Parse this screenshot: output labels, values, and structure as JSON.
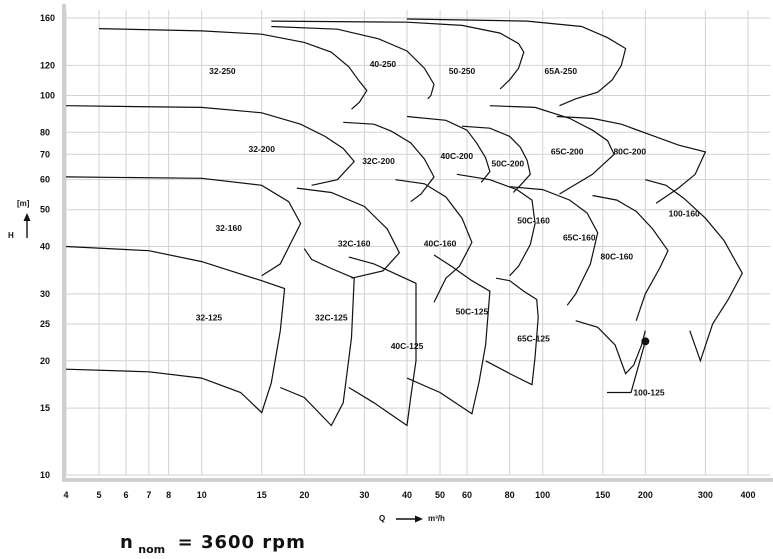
{
  "chart_data": {
    "type": "line",
    "title": "",
    "speed_label": {
      "main": "n",
      "subscript": "nom",
      "rest": "= 3600 rpm"
    },
    "xlabel": "Q",
    "xunit": "m³/h",
    "ylabel": "H",
    "yunit": "[m]",
    "xscale": "log",
    "yscale": "log",
    "xlim": [
      4,
      400
    ],
    "ylim": [
      10,
      160
    ],
    "grid": true,
    "x_ticks": [
      4,
      5,
      6,
      7,
      8,
      10,
      15,
      20,
      30,
      40,
      50,
      60,
      80,
      100,
      150,
      200,
      300,
      400
    ],
    "y_ticks": [
      10,
      15,
      20,
      25,
      30,
      40,
      50,
      60,
      70,
      80,
      100,
      120,
      160
    ],
    "series": [
      {
        "name": "32-125",
        "label_at": [
          10.5,
          25.5
        ],
        "values": [
          [
            4,
            19
          ],
          [
            7,
            18.7
          ],
          [
            10,
            18.0
          ],
          [
            13,
            16.5
          ],
          [
            15,
            14.6
          ],
          [
            16,
            17.5
          ],
          [
            17,
            24
          ],
          [
            17.5,
            31
          ],
          [
            15,
            32.5
          ],
          [
            10,
            36.5
          ],
          [
            7,
            39
          ],
          [
            4,
            40
          ]
        ]
      },
      {
        "name": "32C-125",
        "label_at": [
          24,
          25.5
        ],
        "values": [
          [
            17,
            17
          ],
          [
            20,
            16
          ],
          [
            24,
            13.5
          ],
          [
            26,
            15.5
          ],
          [
            27.5,
            23
          ],
          [
            28,
            33
          ],
          [
            24,
            35
          ],
          [
            21,
            37
          ],
          [
            20,
            39.5
          ]
        ]
      },
      {
        "name": "40C-125",
        "label_at": [
          40,
          21.5
        ],
        "values": [
          [
            27,
            17
          ],
          [
            32,
            15.5
          ],
          [
            40,
            13.5
          ],
          [
            41,
            16
          ],
          [
            42.5,
            20
          ],
          [
            42.5,
            32
          ],
          [
            38,
            33.5
          ],
          [
            32,
            36
          ],
          [
            27,
            37.5
          ]
        ]
      },
      {
        "name": "50C-125",
        "label_at": [
          62,
          26.5
        ],
        "values": [
          [
            40,
            18
          ],
          [
            50,
            16.5
          ],
          [
            62,
            14.5
          ],
          [
            65,
            17.5
          ],
          [
            68,
            22
          ],
          [
            70,
            30.5
          ],
          [
            62,
            32.5
          ],
          [
            54,
            35.5
          ],
          [
            48,
            38
          ]
        ]
      },
      {
        "name": "65C-125",
        "label_at": [
          94,
          22.5
        ],
        "values": [
          [
            68,
            20
          ],
          [
            80,
            18.5
          ],
          [
            93,
            17.3
          ],
          [
            95,
            20.5
          ],
          [
            97,
            26
          ],
          [
            96,
            29
          ],
          [
            88,
            30.5
          ],
          [
            80,
            32.5
          ],
          [
            73,
            33
          ]
        ]
      },
      {
        "name": "100-125",
        "label_at": [
          205,
          16.2
        ],
        "values": [
          [
            125,
            25.5
          ],
          [
            145,
            24.5
          ],
          [
            163,
            22
          ],
          [
            175,
            18.5
          ],
          [
            185,
            19.5
          ],
          [
            195,
            22
          ],
          [
            200,
            24
          ]
        ]
      },
      {
        "name": "32-160",
        "label_at": [
          12,
          44
        ],
        "values": [
          [
            4,
            61
          ],
          [
            10,
            60.5
          ],
          [
            15,
            58
          ],
          [
            18,
            52.5
          ],
          [
            19.5,
            46
          ],
          [
            17,
            36
          ],
          [
            15,
            33.5
          ]
        ]
      },
      {
        "name": "32C-160",
        "label_at": [
          28,
          40
        ],
        "values": [
          [
            19,
            57
          ],
          [
            24,
            55.5
          ],
          [
            30,
            51
          ],
          [
            35,
            44.5
          ],
          [
            38,
            38.5
          ],
          [
            34,
            34.5
          ],
          [
            27.5,
            33
          ]
        ]
      },
      {
        "name": "40C-160",
        "label_at": [
          50,
          40
        ],
        "values": [
          [
            37,
            60
          ],
          [
            45,
            58.5
          ],
          [
            52,
            54
          ],
          [
            58,
            47.5
          ],
          [
            62,
            41
          ],
          [
            57,
            35.5
          ],
          [
            52,
            33
          ],
          [
            48,
            28.5
          ]
        ]
      },
      {
        "name": "50C-160",
        "label_at": [
          94,
          46
        ],
        "values": [
          [
            56,
            62
          ],
          [
            70,
            60
          ],
          [
            84,
            56.5
          ],
          [
            93,
            53
          ],
          [
            95,
            46
          ],
          [
            92,
            40.5
          ],
          [
            85,
            35.5
          ],
          [
            80,
            33.5
          ]
        ]
      },
      {
        "name": "65C-160",
        "label_at": [
          128,
          41.5
        ],
        "values": [
          [
            80,
            57.5
          ],
          [
            100,
            56.5
          ],
          [
            120,
            53
          ],
          [
            135,
            49
          ],
          [
            145,
            43.5
          ],
          [
            138,
            36
          ],
          [
            125,
            30
          ],
          [
            118,
            28
          ]
        ]
      },
      {
        "name": "80C-160",
        "label_at": [
          165,
          37
        ],
        "values": [
          [
            140,
            54.5
          ],
          [
            165,
            53
          ],
          [
            188,
            49.5
          ],
          [
            210,
            44.5
          ],
          [
            233,
            39
          ],
          [
            220,
            35
          ],
          [
            200,
            30
          ],
          [
            188,
            25.5
          ]
        ]
      },
      {
        "name": "100-160",
        "label_at": [
          260,
          48
        ],
        "values": [
          [
            200,
            60
          ],
          [
            230,
            58
          ],
          [
            260,
            53.5
          ],
          [
            300,
            47.5
          ],
          [
            340,
            41.5
          ],
          [
            385,
            34
          ],
          [
            350,
            29
          ],
          [
            315,
            25
          ],
          [
            290,
            20
          ],
          [
            270,
            24
          ]
        ]
      },
      {
        "name": "32-200",
        "label_at": [
          15,
          71
        ],
        "values": [
          [
            4,
            94
          ],
          [
            10,
            93
          ],
          [
            15,
            90
          ],
          [
            19.5,
            84
          ],
          [
            23,
            78
          ],
          [
            26,
            72.5
          ],
          [
            28,
            67
          ],
          [
            25,
            60
          ],
          [
            21,
            58
          ]
        ]
      },
      {
        "name": "32C-200",
        "label_at": [
          33,
          66
        ],
        "values": [
          [
            26,
            85
          ],
          [
            32,
            84
          ],
          [
            36,
            80.5
          ],
          [
            41,
            75
          ],
          [
            45,
            68
          ],
          [
            48,
            61
          ],
          [
            44,
            55
          ],
          [
            41,
            52.5
          ]
        ]
      },
      {
        "name": "40C-200",
        "label_at": [
          56,
          68
        ],
        "values": [
          [
            40,
            88
          ],
          [
            52,
            86
          ],
          [
            60,
            81
          ],
          [
            64,
            75
          ],
          [
            68,
            68.5
          ],
          [
            70,
            63
          ],
          [
            66,
            59
          ]
        ]
      },
      {
        "name": "50C-200",
        "label_at": [
          79,
          65
        ],
        "values": [
          [
            58,
            83
          ],
          [
            70,
            82
          ],
          [
            80,
            78
          ],
          [
            86,
            73
          ],
          [
            90,
            67.5
          ],
          [
            92,
            62
          ],
          [
            86,
            58
          ],
          [
            82,
            55.5
          ]
        ]
      },
      {
        "name": "65C-200",
        "label_at": [
          118,
          70
        ],
        "values": [
          [
            70,
            94
          ],
          [
            95,
            93
          ],
          [
            120,
            87
          ],
          [
            140,
            81
          ],
          [
            155,
            76
          ],
          [
            162,
            70
          ],
          [
            140,
            62
          ],
          [
            112,
            55
          ]
        ]
      },
      {
        "name": "80C-200",
        "label_at": [
          180,
          70
        ],
        "values": [
          [
            110,
            88
          ],
          [
            140,
            87
          ],
          [
            170,
            84
          ],
          [
            205,
            79
          ],
          [
            250,
            74
          ],
          [
            300,
            71
          ],
          [
            280,
            62
          ],
          [
            250,
            57
          ],
          [
            215,
            52
          ]
        ]
      },
      {
        "name": "32-250",
        "label_at": [
          11.5,
          114
        ],
        "values": [
          [
            5,
            150
          ],
          [
            10,
            148
          ],
          [
            15,
            145
          ],
          [
            20,
            138
          ],
          [
            24,
            130
          ],
          [
            27,
            119
          ],
          [
            29,
            109
          ],
          [
            30.5,
            103
          ],
          [
            29,
            96
          ],
          [
            27.5,
            92
          ]
        ]
      },
      {
        "name": "40-250",
        "label_at": [
          34,
          119
        ],
        "values": [
          [
            16,
            152
          ],
          [
            25,
            149.5
          ],
          [
            33,
            141
          ],
          [
            40,
            131
          ],
          [
            45,
            118
          ],
          [
            48,
            107
          ],
          [
            47,
            100
          ],
          [
            46,
            98
          ]
        ]
      },
      {
        "name": "50-250",
        "label_at": [
          58,
          114
        ],
        "values": [
          [
            16,
            157
          ],
          [
            40,
            156
          ],
          [
            58,
            153
          ],
          [
            75,
            146
          ],
          [
            85,
            137
          ],
          [
            88,
            130
          ],
          [
            85,
            118
          ],
          [
            80,
            110
          ],
          [
            75,
            104
          ]
        ]
      },
      {
        "name": "65A-250",
        "label_at": [
          113,
          114
        ],
        "values": [
          [
            40,
            159
          ],
          [
            90,
            157
          ],
          [
            130,
            152
          ],
          [
            155,
            142
          ],
          [
            175,
            133
          ],
          [
            170,
            120
          ],
          [
            160,
            110
          ],
          [
            145,
            102
          ],
          [
            125,
            98
          ],
          [
            112,
            94
          ]
        ]
      }
    ],
    "markers": [
      {
        "name": "100-125",
        "point": [
          200,
          22.5
        ]
      }
    ]
  }
}
